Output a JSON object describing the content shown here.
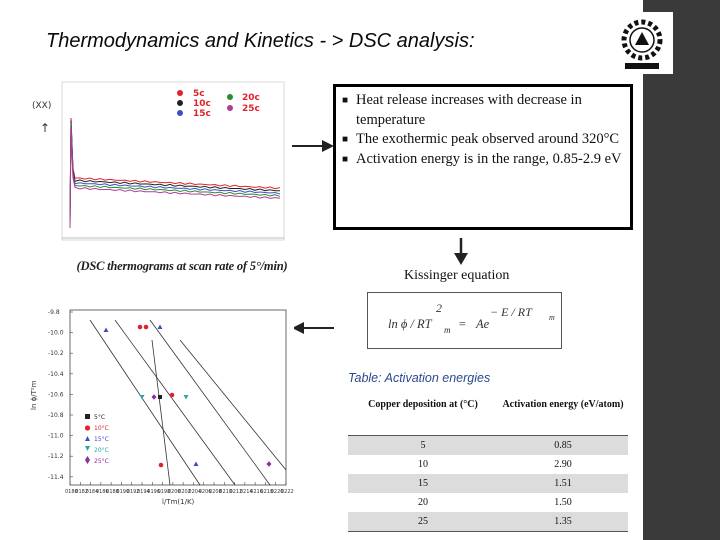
{
  "title": "Thermodynamics and Kinetics - > DSC analysis:",
  "bullets": [
    "Heat release increases with   decrease in temperature",
    "The exothermic peak observed around 320°C",
    "Activation energy is in the range, 0.85-2.9 eV"
  ],
  "dsc_plot": {
    "ylabel": "(XX)",
    "legend": [
      "5c",
      "10c",
      "15c",
      "20c",
      "25c"
    ],
    "colors": {
      "5c": "#e0232b",
      "10c": "#222222",
      "15c": "#3a4fc4",
      "20c": "#2e8b2e",
      "25c": "#b23a9a"
    }
  },
  "caption": "(DSC thermograms at scan rate of 5°/min)",
  "kissinger_label": "Kissinger equation",
  "equation": {
    "num": "2",
    "lhs": "ln ϕ / RT",
    "lhs_sub": "m",
    "eq": "=",
    "rhs": "Ae",
    "exp": "− E / RT",
    "exp_sub": "m"
  },
  "kissinger_plot": {
    "xlabel": "l/Tm(1/K)",
    "ylabel": "ln ϕ/T²m",
    "yticks": [
      "-9.8",
      "-10.0",
      "-10.2",
      "-10.4",
      "-10.6",
      "-10.8",
      "-11.0",
      "-11.2",
      "-11.4"
    ],
    "xticks": [
      "0.00180",
      "0.00182",
      "0.00184",
      "0.00186",
      "0.00188",
      "0.00190",
      "0.00192",
      "0.00194",
      "0.00196",
      "0.00198",
      "0.00200",
      "0.00202",
      "0.00204",
      "0.00206",
      "0.00208",
      "0.00210",
      "0.00212",
      "0.00214",
      "0.00216",
      "0.00218",
      "0.00220",
      "0.00222"
    ],
    "legend": [
      "5°C",
      "10°C",
      "15°C",
      "20°C",
      "25°C"
    ],
    "colors": {
      "5": "#222222",
      "10": "#e0232b",
      "15": "#3a4fc4",
      "20": "#2aa8a8",
      "25": "#8a2fa0"
    }
  },
  "table": {
    "title": "Table: Activation energies",
    "headers": [
      "Copper deposition at (°C)",
      "Activation energy (eV/atom)"
    ],
    "rows": [
      [
        "5",
        "0.85"
      ],
      [
        "10",
        "2.90"
      ],
      [
        "15",
        "1.51"
      ],
      [
        "20",
        "1.50"
      ],
      [
        "25",
        "1.35"
      ]
    ]
  }
}
